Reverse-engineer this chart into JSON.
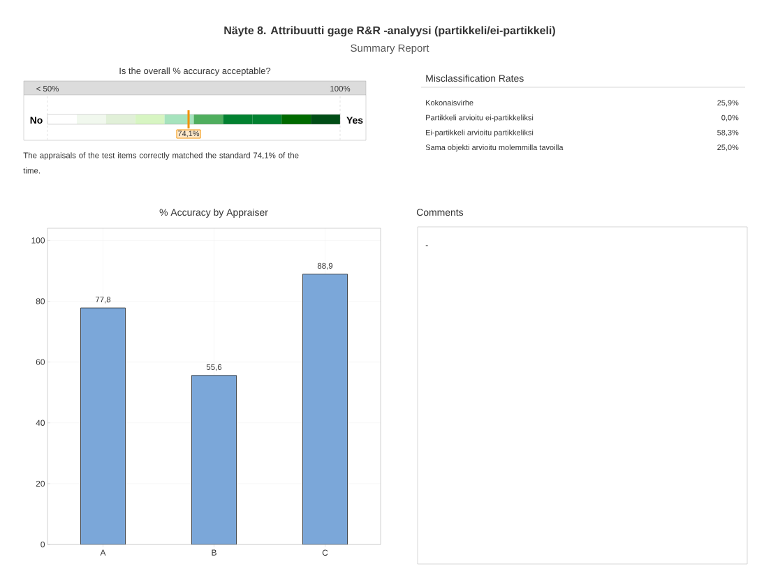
{
  "chart_data": [
    {
      "type": "other",
      "title": "Näyte 8. Attribuutti gage R&R -analyysi (partikkeli/ei-partikkeli)",
      "subtitle": "Summary Report",
      "annotations": [
        "Is the overall % accuracy acceptable?",
        "< 50%",
        "100%",
        "No",
        "Yes",
        "74,1%",
        "The appraisals of the test items correctly matched the standard 74,1% of the time."
      ]
    },
    {
      "type": "other",
      "title": "Misclassification Rates",
      "categories": [
        "Kokonaisvirhe",
        "Partikkeli arvioitu ei-partikkeliksi",
        "Ei-partikkeli arvioitu partikkeliksi",
        "Sama objekti arvioitu molemmilla tavoilla"
      ],
      "value_labels": [
        "25,9%",
        "0,0%",
        "58,3%",
        "25,0%"
      ]
    },
    {
      "type": "bar",
      "title": "% Accuracy by Appraiser",
      "categories": [
        "A",
        "B",
        "C"
      ],
      "values": [
        77.8,
        55.6,
        88.9
      ],
      "value_labels": [
        "77,8",
        "55,6",
        "88,9"
      ],
      "color": "#7ba7d9",
      "ylim": [
        0,
        104
      ],
      "yticks": [
        0,
        20,
        40,
        60,
        80,
        100
      ],
      "grid": true
    },
    {
      "type": "other",
      "title": "Comments",
      "annotations": [
        "-"
      ]
    }
  ]
}
